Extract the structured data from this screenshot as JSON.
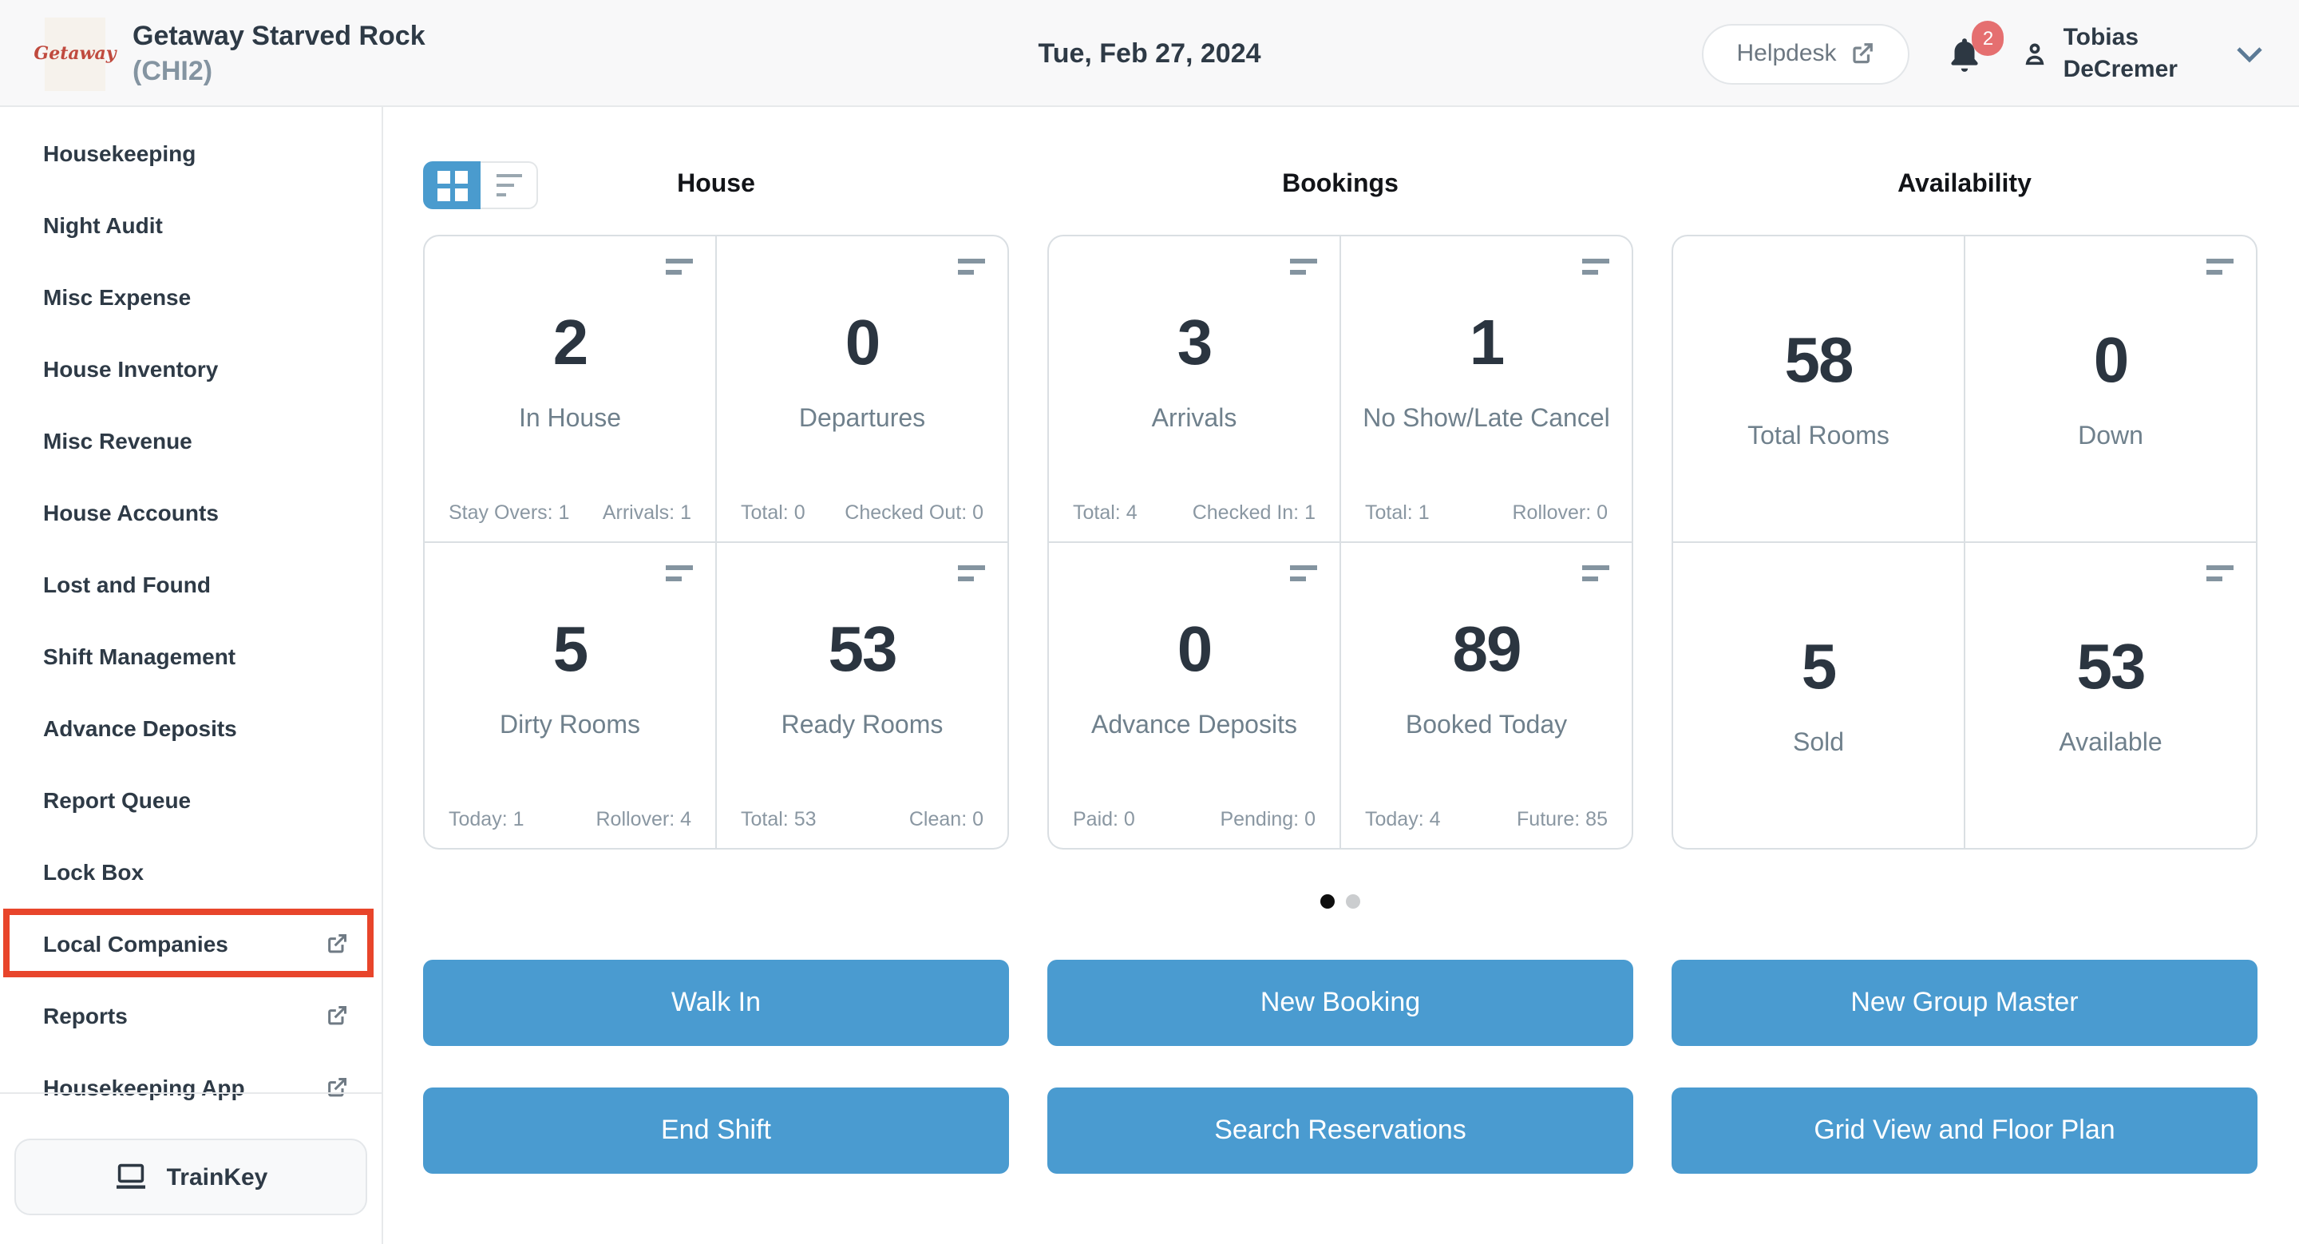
{
  "header": {
    "logo_text": "Getaway",
    "property_name": "Getaway Starved Rock",
    "property_code": "(CHI2)",
    "date": "Tue, Feb 27, 2024",
    "helpdesk_label": "Helpdesk",
    "notification_count": "2",
    "user_first_name": "Tobias",
    "user_last_name": "DeCremer"
  },
  "sidebar": {
    "items": [
      {
        "label": "Housekeeping",
        "external": false,
        "highlighted": false
      },
      {
        "label": "Night Audit",
        "external": false,
        "highlighted": false
      },
      {
        "label": "Misc Expense",
        "external": false,
        "highlighted": false
      },
      {
        "label": "House Inventory",
        "external": false,
        "highlighted": false
      },
      {
        "label": "Misc Revenue",
        "external": false,
        "highlighted": false
      },
      {
        "label": "House Accounts",
        "external": false,
        "highlighted": false
      },
      {
        "label": "Lost and Found",
        "external": false,
        "highlighted": false
      },
      {
        "label": "Shift Management",
        "external": false,
        "highlighted": false
      },
      {
        "label": "Advance Deposits",
        "external": false,
        "highlighted": false
      },
      {
        "label": "Report Queue",
        "external": false,
        "highlighted": false
      },
      {
        "label": "Lock Box",
        "external": false,
        "highlighted": false
      },
      {
        "label": "Local Companies",
        "external": true,
        "highlighted": true
      },
      {
        "label": "Reports",
        "external": true,
        "highlighted": false
      },
      {
        "label": "Housekeeping App",
        "external": true,
        "highlighted": false
      }
    ],
    "trainkey_label": "TrainKey"
  },
  "dashboard": {
    "columns": [
      {
        "title": "House",
        "cards": [
          {
            "value": "2",
            "label": "In House",
            "menu_icon": true,
            "stats": [
              {
                "label": "Stay Overs",
                "value": "1"
              },
              {
                "label": "Arrivals",
                "value": "1"
              }
            ]
          },
          {
            "value": "0",
            "label": "Departures",
            "menu_icon": true,
            "stats": [
              {
                "label": "Total",
                "value": "0"
              },
              {
                "label": "Checked Out",
                "value": "0"
              }
            ]
          },
          {
            "value": "5",
            "label": "Dirty Rooms",
            "menu_icon": true,
            "stats": [
              {
                "label": "Today",
                "value": "1"
              },
              {
                "label": "Rollover",
                "value": "4"
              }
            ]
          },
          {
            "value": "53",
            "label": "Ready Rooms",
            "menu_icon": true,
            "stats": [
              {
                "label": "Total",
                "value": "53"
              },
              {
                "label": "Clean",
                "value": "0"
              }
            ]
          }
        ]
      },
      {
        "title": "Bookings",
        "cards": [
          {
            "value": "3",
            "label": "Arrivals",
            "menu_icon": true,
            "stats": [
              {
                "label": "Total",
                "value": "4"
              },
              {
                "label": "Checked In",
                "value": "1"
              }
            ]
          },
          {
            "value": "1",
            "label": "No Show/Late Cancel",
            "menu_icon": true,
            "stats": [
              {
                "label": "Total",
                "value": "1"
              },
              {
                "label": "Rollover",
                "value": "0"
              }
            ]
          },
          {
            "value": "0",
            "label": "Advance Deposits",
            "menu_icon": true,
            "stats": [
              {
                "label": "Paid",
                "value": "0"
              },
              {
                "label": "Pending",
                "value": "0"
              }
            ]
          },
          {
            "value": "89",
            "label": "Booked Today",
            "menu_icon": true,
            "stats": [
              {
                "label": "Today",
                "value": "4"
              },
              {
                "label": "Future",
                "value": "85"
              }
            ]
          }
        ]
      },
      {
        "title": "Availability",
        "cards": [
          {
            "value": "58",
            "label": "Total Rooms",
            "menu_icon": false,
            "stats": []
          },
          {
            "value": "0",
            "label": "Down",
            "menu_icon": true,
            "stats": []
          },
          {
            "value": "5",
            "label": "Sold",
            "menu_icon": false,
            "stats": []
          },
          {
            "value": "53",
            "label": "Available",
            "menu_icon": true,
            "stats": []
          }
        ]
      }
    ],
    "pagination": {
      "total_pages": 2,
      "active_page": 1
    },
    "actions": [
      {
        "label": "Walk In"
      },
      {
        "label": "New Booking"
      },
      {
        "label": "New Group Master"
      },
      {
        "label": "End Shift"
      },
      {
        "label": "Search Reservations"
      },
      {
        "label": "Grid View and Floor Plan"
      }
    ]
  },
  "icons": {
    "view_toggle": [
      "grid-view-icon",
      "list-view-icon"
    ],
    "card_corner": "menu-bars-icon",
    "sidebar_external": "external-link-icon",
    "header": [
      "external-link-icon",
      "bell-icon",
      "person-icon",
      "chevron-down-icon"
    ],
    "trainkey": "laptop-icon"
  },
  "colors": {
    "accent_blue": "#4A9BD0",
    "toggle_blue": "#4A9BCE",
    "annotation_red": "#E8452B",
    "badge_red": "#E56F70",
    "dark_text": "#2E3A46",
    "gray_label": "#6F808C",
    "stat_gray": "#8A97A2",
    "header_bg": "#F8F8F9",
    "border_gray": "#DADFE3"
  }
}
